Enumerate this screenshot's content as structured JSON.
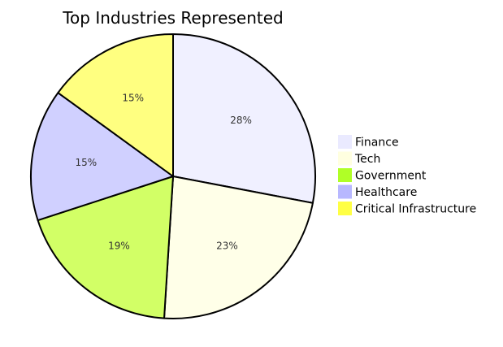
{
  "chart_data": {
    "type": "pie",
    "title": "Top Industries Represented",
    "legend_position": "right",
    "slices": [
      {
        "label": "Finance",
        "value": 28,
        "value_label": "28%",
        "color": "#f0f0ff",
        "legend_color": "#eaeaff"
      },
      {
        "label": "Tech",
        "value": 23,
        "value_label": "23%",
        "color": "#ffffe8",
        "legend_color": "#ffffe0"
      },
      {
        "label": "Government",
        "value": 19,
        "value_label": "19%",
        "color": "#d2ff66",
        "legend_color": "#b0ff26"
      },
      {
        "label": "Healthcare",
        "value": 15,
        "value_label": "15%",
        "color": "#d0d0ff",
        "legend_color": "#b8b8ff"
      },
      {
        "label": "Critical Infrastructure",
        "value": 15,
        "value_label": "15%",
        "color": "#ffff80",
        "legend_color": "#ffff44"
      }
    ]
  }
}
